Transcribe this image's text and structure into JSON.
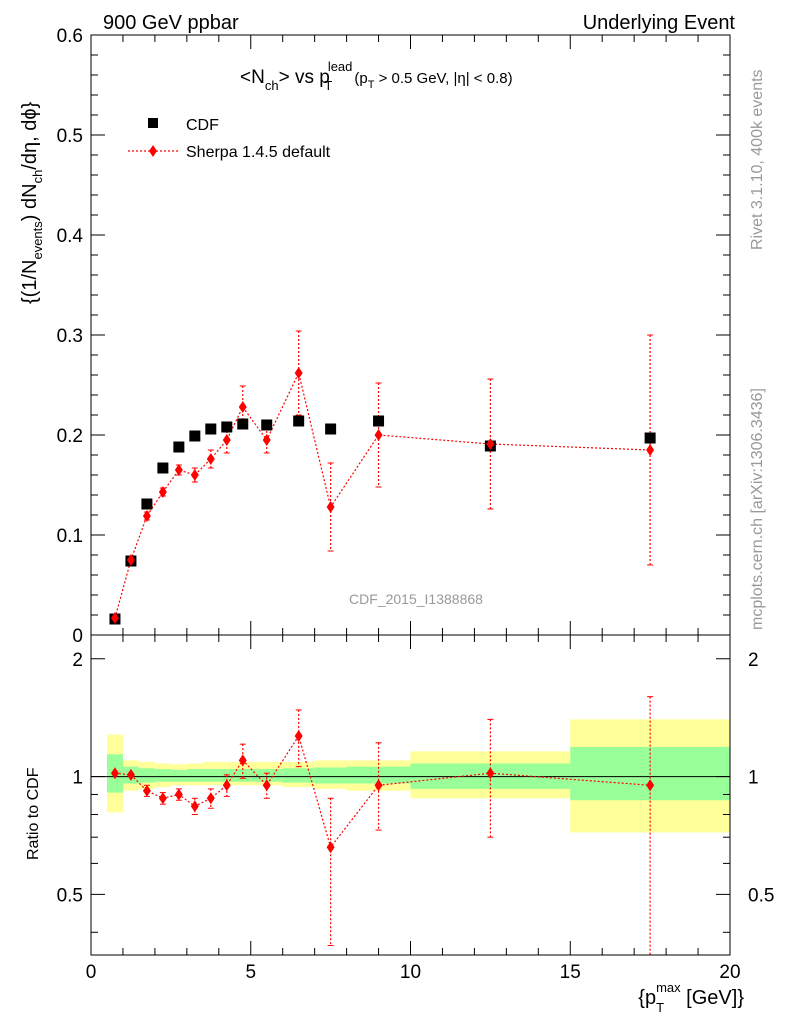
{
  "header": {
    "left": "900 GeV ppbar",
    "right": "Underlying Event"
  },
  "side_text": {
    "rivet": "Rivet 3.1.10,  400k events",
    "mcplots": "mcplots.cern.ch [arXiv:1306.3436]"
  },
  "watermark": "CDF_2015_I1388868",
  "chart_data": {
    "type": "scatter",
    "title": {
      "lt": "<",
      "n": "N",
      "ch": "ch",
      "gt": "> vs p",
      "lead": "lead",
      "T": "T",
      "cut_open": "(p",
      "cut_T": "T",
      "cut_rest": " > 0.5 GeV, |η| < 0.8)"
    },
    "ylabel": {
      "open": "{(1/N",
      "events": "events",
      "mid": ") dN",
      "ch": "ch",
      "close": "/dη, dϕ}"
    },
    "xlabel": {
      "open": "{p",
      "T": "T",
      "max": "max",
      "close": " [GeV]}"
    },
    "ratio_ylabel": "Ratio to CDF",
    "xlim": [
      0,
      20
    ],
    "ylim": [
      0,
      0.6
    ],
    "ratio_ylim": [
      0.35,
      2.3
    ],
    "ratio_scale": "log",
    "x_ticks": [
      "0",
      "5",
      "10",
      "15",
      "20"
    ],
    "y_ticks": [
      "0",
      "0.1",
      "0.2",
      "0.3",
      "0.4",
      "0.5",
      "0.6"
    ],
    "ratio_ticks": [
      "0.5",
      "1",
      "2"
    ],
    "legend_position": "top-left",
    "series": [
      {
        "name": "CDF",
        "color": "#000000",
        "marker": "square",
        "x": [
          0.75,
          1.25,
          1.75,
          2.25,
          2.75,
          3.25,
          3.75,
          4.25,
          4.75,
          5.5,
          6.5,
          7.5,
          9.0,
          12.5,
          17.5
        ],
        "y": [
          0.016,
          0.074,
          0.131,
          0.167,
          0.188,
          0.199,
          0.206,
          0.208,
          0.211,
          0.21,
          0.214,
          0.206,
          0.214,
          0.189,
          0.197
        ]
      },
      {
        "name": "Sherpa 1.4.5 default",
        "color": "#ff0000",
        "marker": "diamond",
        "x": [
          0.75,
          1.25,
          1.75,
          2.25,
          2.75,
          3.25,
          3.75,
          4.25,
          4.75,
          5.5,
          6.5,
          7.5,
          9.0,
          12.5,
          17.5
        ],
        "y": [
          0.017,
          0.075,
          0.119,
          0.143,
          0.165,
          0.16,
          0.176,
          0.195,
          0.228,
          0.195,
          0.262,
          0.128,
          0.2,
          0.191,
          0.185
        ],
        "err": [
          0.0015,
          0.004,
          0.004,
          0.004,
          0.005,
          0.007,
          0.009,
          0.013,
          0.021,
          0.013,
          0.042,
          0.044,
          0.052,
          0.065,
          0.115
        ]
      }
    ],
    "ratio": {
      "x": [
        0.75,
        1.25,
        1.75,
        2.25,
        2.75,
        3.25,
        3.75,
        4.25,
        4.75,
        5.5,
        6.5,
        7.5,
        9.0,
        12.5,
        17.5
      ],
      "values": [
        1.02,
        1.01,
        0.92,
        0.88,
        0.9,
        0.84,
        0.88,
        0.95,
        1.1,
        0.95,
        1.27,
        0.66,
        0.95,
        1.02,
        0.95
      ],
      "up": [
        1.02,
        1.02,
        0.95,
        0.91,
        0.93,
        0.88,
        0.93,
        1.01,
        1.21,
        1.02,
        1.48,
        0.88,
        1.22,
        1.4,
        1.6
      ],
      "down": [
        1.02,
        1.0,
        0.89,
        0.85,
        0.87,
        0.8,
        0.83,
        0.89,
        0.99,
        0.88,
        1.06,
        0.37,
        0.73,
        0.7,
        0.35
      ],
      "bands": [
        {
          "x0": 0.5,
          "x1": 1.0,
          "green": [
            0.91,
            1.14
          ],
          "yellow": [
            0.81,
            1.28
          ]
        },
        {
          "x0": 1.0,
          "x1": 1.5,
          "green": [
            0.96,
            1.06
          ],
          "yellow": [
            0.92,
            1.1
          ]
        },
        {
          "x0": 1.5,
          "x1": 2.0,
          "green": [
            0.965,
            1.05
          ],
          "yellow": [
            0.93,
            1.09
          ]
        },
        {
          "x0": 2.0,
          "x1": 2.5,
          "green": [
            0.97,
            1.045
          ],
          "yellow": [
            0.94,
            1.08
          ]
        },
        {
          "x0": 2.5,
          "x1": 3.0,
          "green": [
            0.97,
            1.04
          ],
          "yellow": [
            0.95,
            1.075
          ]
        },
        {
          "x0": 3.0,
          "x1": 3.5,
          "green": [
            0.97,
            1.045
          ],
          "yellow": [
            0.95,
            1.08
          ]
        },
        {
          "x0": 3.5,
          "x1": 4.0,
          "green": [
            0.97,
            1.045
          ],
          "yellow": [
            0.95,
            1.09
          ]
        },
        {
          "x0": 4.0,
          "x1": 4.5,
          "green": [
            0.97,
            1.045
          ],
          "yellow": [
            0.95,
            1.09
          ]
        },
        {
          "x0": 4.5,
          "x1": 5.0,
          "green": [
            0.97,
            1.045
          ],
          "yellow": [
            0.95,
            1.09
          ]
        },
        {
          "x0": 5.0,
          "x1": 6.0,
          "green": [
            0.97,
            1.045
          ],
          "yellow": [
            0.95,
            1.09
          ]
        },
        {
          "x0": 6.0,
          "x1": 7.0,
          "green": [
            0.965,
            1.05
          ],
          "yellow": [
            0.94,
            1.09
          ]
        },
        {
          "x0": 7.0,
          "x1": 8.0,
          "green": [
            0.96,
            1.055
          ],
          "yellow": [
            0.93,
            1.1
          ]
        },
        {
          "x0": 8.0,
          "x1": 10.0,
          "green": [
            0.96,
            1.06
          ],
          "yellow": [
            0.92,
            1.1
          ]
        },
        {
          "x0": 10.0,
          "x1": 15.0,
          "green": [
            0.93,
            1.08
          ],
          "yellow": [
            0.88,
            1.16
          ]
        },
        {
          "x0": 15.0,
          "x1": 20.0,
          "green": [
            0.87,
            1.19
          ],
          "yellow": [
            0.72,
            1.4
          ]
        }
      ]
    }
  }
}
